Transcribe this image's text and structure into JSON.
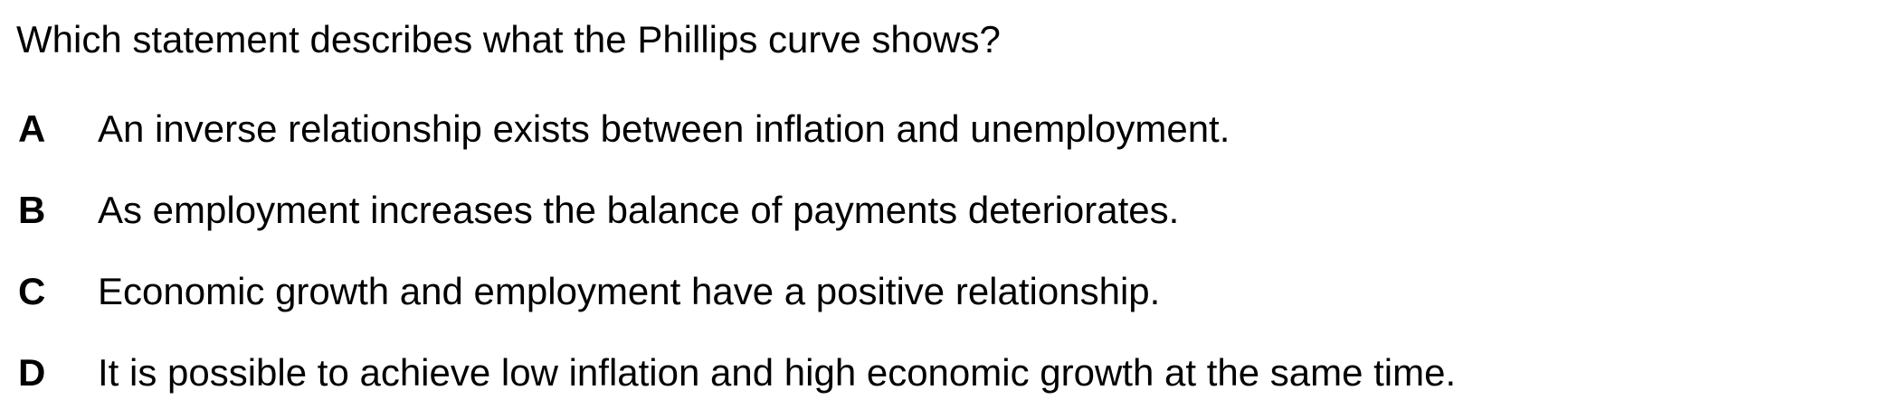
{
  "question": {
    "text": "Which statement describes what the Phillips curve shows?"
  },
  "options": [
    {
      "letter": "A",
      "text": "An inverse relationship exists between inflation and unemployment."
    },
    {
      "letter": "B",
      "text": "As employment increases the balance of payments deteriorates."
    },
    {
      "letter": "C",
      "text": "Economic growth and employment have a positive relationship."
    },
    {
      "letter": "D",
      "text": "It is possible to achieve low inflation and high economic growth at the same time."
    }
  ]
}
